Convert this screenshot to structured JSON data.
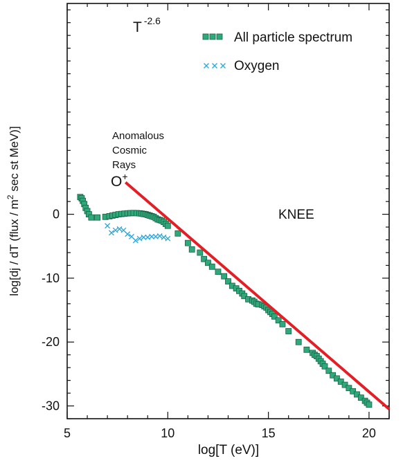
{
  "chart_data": {
    "type": "scatter",
    "title": "",
    "xlabel": "log[T (eV)]",
    "ylabel_parts": [
      "log[dj / dT (flux / m",
      "2",
      "  sec  st  MeV)]"
    ],
    "xlim": [
      5,
      21
    ],
    "ylim": [
      -32,
      33
    ],
    "xticks": [
      5,
      10,
      15,
      20
    ],
    "xticklabels": [
      "5",
      "10",
      "15",
      "20"
    ],
    "yticks": [
      0,
      -10,
      -20,
      -30
    ],
    "yticklabels": [
      "0",
      "-10",
      "-20",
      "-30"
    ],
    "grid": false,
    "legend_position": "top-right",
    "series": [
      {
        "name": "All particle spectrum",
        "marker": "square",
        "color": "#2eaa7a",
        "x": [
          5.65,
          5.72,
          5.78,
          5.85,
          5.92,
          6.0,
          6.08,
          6.2,
          6.5,
          6.9,
          7.1,
          7.25,
          7.4,
          7.55,
          7.7,
          7.85,
          8.0,
          8.15,
          8.3,
          8.45,
          8.6,
          8.7,
          8.8,
          8.9,
          9.0,
          9.1,
          9.2,
          9.3,
          9.4,
          9.5,
          9.6,
          9.7,
          9.8,
          9.9,
          10.0,
          10.5,
          11.0,
          11.2,
          11.6,
          11.8,
          12.0,
          12.2,
          12.5,
          12.8,
          13.0,
          13.2,
          13.4,
          13.55,
          13.7,
          13.8,
          14.0,
          14.2,
          14.3,
          14.4,
          14.5,
          14.7,
          14.8,
          14.9,
          15.0,
          15.1,
          15.2,
          15.3,
          15.5,
          15.7,
          16.0,
          16.5,
          16.9,
          17.2,
          17.3,
          17.4,
          17.5,
          17.6,
          17.7,
          17.8,
          18.0,
          18.2,
          18.4,
          18.6,
          18.8,
          19.0,
          19.2,
          19.4,
          19.6,
          19.8,
          19.9,
          20.0
        ],
        "y": [
          2.7,
          2.5,
          2.1,
          1.6,
          1.0,
          0.5,
          0.0,
          -0.5,
          -0.5,
          -0.4,
          -0.3,
          -0.2,
          -0.1,
          0.0,
          0.05,
          0.1,
          0.15,
          0.18,
          0.2,
          0.18,
          0.15,
          0.1,
          0.05,
          0.0,
          -0.1,
          -0.2,
          -0.3,
          -0.4,
          -0.6,
          -0.8,
          -0.9,
          -1.0,
          -1.2,
          -1.5,
          -1.8,
          -3.0,
          -4.5,
          -5.5,
          -6.0,
          -7.0,
          -7.6,
          -8.2,
          -9.0,
          -9.7,
          -10.5,
          -11.2,
          -11.6,
          -12.0,
          -12.4,
          -12.8,
          -13.3,
          -13.5,
          -13.7,
          -14.0,
          -14.1,
          -14.2,
          -14.4,
          -14.6,
          -15.0,
          -15.3,
          -15.6,
          -16.0,
          -16.6,
          -17.2,
          -18.3,
          -20.0,
          -21.2,
          -21.7,
          -22.0,
          -22.2,
          -22.6,
          -23.0,
          -23.4,
          -23.8,
          -24.5,
          -25.2,
          -25.7,
          -26.2,
          -26.7,
          -27.2,
          -27.7,
          -28.2,
          -28.7,
          -29.2,
          -29.5,
          -29.8
        ]
      },
      {
        "name": "Oxygen",
        "marker": "x",
        "color": "#29a9e1",
        "x": [
          7.0,
          7.2,
          7.4,
          7.6,
          7.8,
          8.0,
          8.2,
          8.4,
          8.6,
          8.8,
          9.0,
          9.2,
          9.4,
          9.6,
          9.8,
          10.0
        ],
        "y": [
          -1.8,
          -2.9,
          -2.5,
          -2.3,
          -2.5,
          -3.1,
          -3.5,
          -4.1,
          -3.8,
          -3.6,
          -3.6,
          -3.5,
          -3.5,
          -3.4,
          -3.6,
          -3.8
        ]
      }
    ],
    "fit_line": {
      "color": "#e31e24",
      "x": [
        7.9,
        21.0
      ],
      "y": [
        5.0,
        -30.5
      ]
    },
    "annotations": {
      "power_law_base": "T",
      "power_law_exp": "-2.6",
      "anomalous_lines": [
        "Anomalous",
        "Cosmic",
        "Rays"
      ],
      "o_plus_base": "O",
      "o_plus_sup": "+",
      "knee": "KNEE"
    }
  }
}
